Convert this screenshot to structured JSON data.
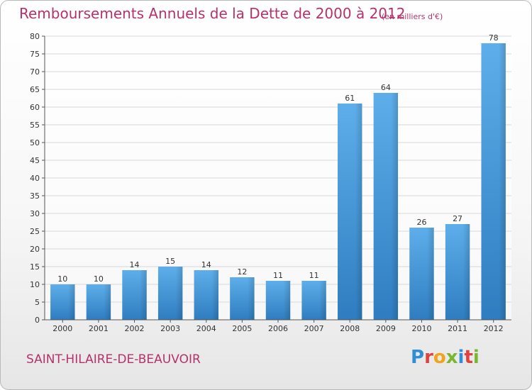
{
  "header": {
    "title": "Remboursements Annuels de la Dette de 2000 à 2012",
    "unit": "(en milliers d'€)"
  },
  "footer": {
    "city": "SAINT-HILAIRE-DE-BEAUVOIR",
    "logo": [
      "P",
      "r",
      "o",
      "x",
      "i",
      "t",
      "i"
    ],
    "logo_colors": [
      "#2e8fd6",
      "#e0423f",
      "#f2a31d",
      "#7ab730",
      "#2e8fd6",
      "#e0423f",
      "#7ab730"
    ]
  },
  "chart_data": {
    "type": "bar",
    "title": "Remboursements Annuels de la Dette de 2000 à 2012",
    "categories": [
      "2000",
      "2001",
      "2002",
      "2003",
      "2004",
      "2005",
      "2006",
      "2007",
      "2008",
      "2009",
      "2010",
      "2011",
      "2012"
    ],
    "values": [
      10,
      10,
      14,
      15,
      14,
      12,
      11,
      11,
      61,
      64,
      26,
      27,
      78
    ],
    "ylim": [
      0,
      80
    ],
    "yticks": [
      0,
      5,
      10,
      15,
      20,
      25,
      30,
      35,
      40,
      45,
      50,
      55,
      60,
      65,
      70,
      75,
      80
    ],
    "grid": true,
    "bar_color": "#3a8fd4",
    "grid_color": "#d8d8d8"
  }
}
